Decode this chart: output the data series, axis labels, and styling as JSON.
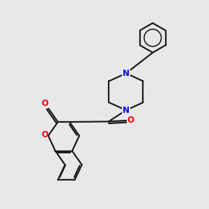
{
  "background_color": "#e8e8e8",
  "bond_color": "#1a1a1a",
  "nitrogen_color": "#0000ee",
  "oxygen_color": "#ee0000",
  "bond_width": 1.6,
  "figsize": [
    3.0,
    3.0
  ],
  "dpi": 100,
  "xlim": [
    0,
    10
  ],
  "ylim": [
    0,
    10
  ]
}
